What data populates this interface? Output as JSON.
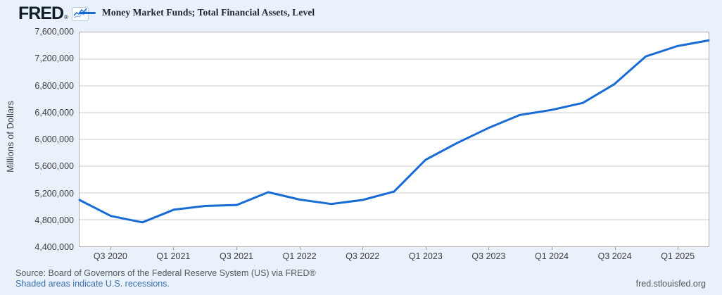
{
  "header": {
    "logo_text": "FRED",
    "registered": "®"
  },
  "legend": {
    "label": "Money Market Funds; Total Financial Assets, Level",
    "line_color": "#176bd4"
  },
  "y_axis": {
    "title": "Millions of Dollars",
    "ticks": [
      "7,600,000",
      "7,200,000",
      "6,800,000",
      "6,400,000",
      "6,000,000",
      "5,600,000",
      "5,200,000",
      "4,800,000",
      "4,400,000"
    ]
  },
  "x_axis": {
    "ticks": [
      "Q3 2020",
      "Q1 2021",
      "Q3 2021",
      "Q1 2022",
      "Q3 2022",
      "Q1 2023",
      "Q3 2023",
      "Q1 2024",
      "Q3 2024",
      "Q1 2025"
    ],
    "tick_data_indices": [
      1,
      3,
      5,
      7,
      9,
      11,
      13,
      15,
      17,
      19
    ]
  },
  "footer": {
    "source": "Source: Board of Governors of the Federal Reserve System (US) via FRED®",
    "note": "Shaded areas indicate U.S. recessions.",
    "site": "fred.stlouisfed.org"
  },
  "chart_data": {
    "type": "line",
    "title": "Money Market Funds; Total Financial Assets, Level",
    "ylabel": "Millions of Dollars",
    "ylim": [
      4400000,
      7600000
    ],
    "ystep": 400000,
    "grid": true,
    "legend_position": "top-left",
    "line_color": "#176bd4",
    "grid_color": "#cccccc",
    "x": [
      "2020 Q2",
      "2020 Q3",
      "2020 Q4",
      "2021 Q1",
      "2021 Q2",
      "2021 Q3",
      "2021 Q4",
      "2022 Q1",
      "2022 Q2",
      "2022 Q3",
      "2022 Q4",
      "2023 Q1",
      "2023 Q2",
      "2023 Q3",
      "2023 Q4",
      "2024 Q1",
      "2024 Q2",
      "2024 Q3",
      "2024 Q4",
      "2025 Q1",
      "2025 Q2"
    ],
    "values": [
      5095000,
      4855000,
      4760000,
      4950000,
      5005000,
      5020000,
      5210000,
      5100000,
      5035000,
      5095000,
      5220000,
      5695000,
      5945000,
      6170000,
      6365000,
      6440000,
      6545000,
      6825000,
      7240000,
      7395000,
      7480000
    ]
  }
}
